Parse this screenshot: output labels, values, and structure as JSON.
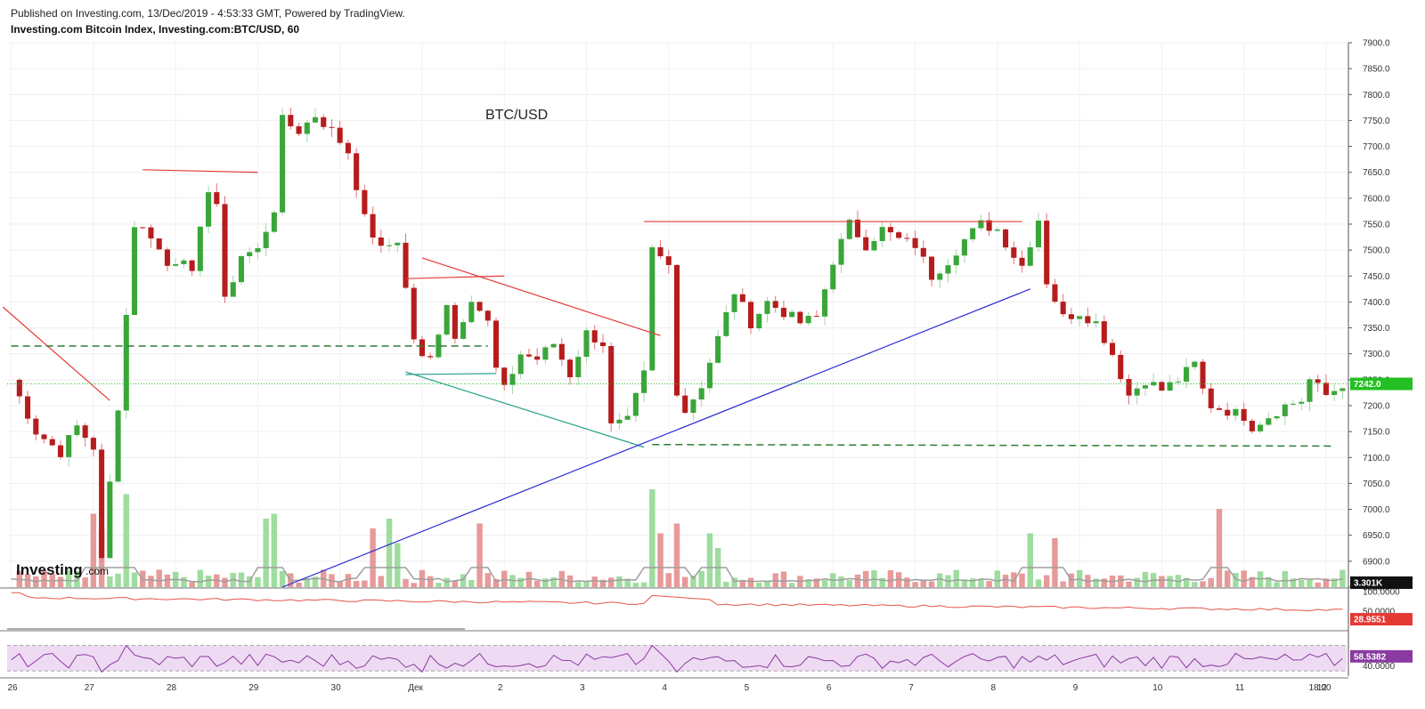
{
  "header": {
    "publish_line": "Published on Investing.com, 13/Dec/2019 - 4:53:33 GMT, Powered by TradingView.",
    "series_title": "Investing.com Bitcoin Index, Investing.com:BTC/USD, 60"
  },
  "logo": {
    "text": "Investing",
    "suffix": ".com"
  },
  "colors": {
    "up": "#3aa63a",
    "down": "#b71c1c",
    "vol_up": "#9fdc9f",
    "vol_down": "#e79a9a",
    "last_price": "#22c022",
    "rsi_band": "#eedbf3",
    "rsi_line": "#8a3aa0",
    "osc_line": "#e5534b",
    "trend_red": "#e53935",
    "trend_blue": "#2a2ad6",
    "trend_teal": "#27a08a",
    "support_green": "#2e7d32"
  },
  "chart_data": {
    "type": "candlestick",
    "annotation": "BTC/USD",
    "x_labels": [
      "26",
      "27",
      "28",
      "29",
      "30",
      "Дек",
      "2",
      "3",
      "4",
      "5",
      "6",
      "7",
      "8",
      "9",
      "10",
      "11",
      "12",
      "18:00"
    ],
    "price_axis": {
      "min": 6850,
      "max": 7900,
      "step": 50
    },
    "price_ticks": [
      "7900.0",
      "7850.0",
      "7800.0",
      "7750.0",
      "7700.0",
      "7650.0",
      "7600.0",
      "7550.0",
      "7500.0",
      "7450.0",
      "7400.0",
      "7350.0",
      "7300.0",
      "7250.0",
      "7200.0",
      "7150.0",
      "7100.0",
      "7050.0",
      "7000.0",
      "6950.0",
      "6900.0",
      "6850.0"
    ],
    "last_price": {
      "value": 7242.0,
      "label": "7242.0"
    },
    "price_path": [
      [
        0,
        7250
      ],
      [
        3,
        7150
      ],
      [
        6,
        7110
      ],
      [
        8,
        7160
      ],
      [
        10,
        7120
      ],
      [
        11,
        6900
      ],
      [
        13,
        7200
      ],
      [
        15,
        7550
      ],
      [
        17,
        7530
      ],
      [
        19,
        7470
      ],
      [
        21,
        7490
      ],
      [
        22,
        7450
      ],
      [
        24,
        7620
      ],
      [
        25,
        7590
      ],
      [
        26,
        7400
      ],
      [
        28,
        7490
      ],
      [
        30,
        7500
      ],
      [
        32,
        7580
      ],
      [
        33,
        7750
      ],
      [
        35,
        7730
      ],
      [
        37,
        7760
      ],
      [
        39,
        7730
      ],
      [
        41,
        7690
      ],
      [
        43,
        7560
      ],
      [
        45,
        7500
      ],
      [
        47,
        7520
      ],
      [
        49,
        7330
      ],
      [
        50,
        7290
      ],
      [
        51,
        7290
      ],
      [
        53,
        7400
      ],
      [
        54,
        7330
      ],
      [
        56,
        7410
      ],
      [
        58,
        7360
      ],
      [
        59,
        7270
      ],
      [
        60,
        7230
      ],
      [
        62,
        7300
      ],
      [
        64,
        7290
      ],
      [
        66,
        7320
      ],
      [
        68,
        7260
      ],
      [
        70,
        7340
      ],
      [
        72,
        7320
      ],
      [
        73,
        7160
      ],
      [
        75,
        7170
      ],
      [
        77,
        7260
      ],
      [
        78,
        7500
      ],
      [
        80,
        7470
      ],
      [
        81,
        7230
      ],
      [
        82,
        7190
      ],
      [
        84,
        7240
      ],
      [
        86,
        7330
      ],
      [
        88,
        7420
      ],
      [
        90,
        7360
      ],
      [
        92,
        7400
      ],
      [
        94,
        7380
      ],
      [
        96,
        7360
      ],
      [
        98,
        7370
      ],
      [
        100,
        7480
      ],
      [
        102,
        7550
      ],
      [
        104,
        7510
      ],
      [
        106,
        7540
      ],
      [
        108,
        7520
      ],
      [
        110,
        7510
      ],
      [
        112,
        7450
      ],
      [
        114,
        7480
      ],
      [
        116,
        7520
      ],
      [
        118,
        7550
      ],
      [
        120,
        7540
      ],
      [
        122,
        7490
      ],
      [
        123,
        7470
      ],
      [
        125,
        7560
      ],
      [
        126,
        7440
      ],
      [
        128,
        7370
      ],
      [
        130,
        7380
      ],
      [
        132,
        7360
      ],
      [
        134,
        7300
      ],
      [
        136,
        7220
      ],
      [
        138,
        7250
      ],
      [
        140,
        7230
      ],
      [
        142,
        7250
      ],
      [
        144,
        7280
      ],
      [
        145,
        7230
      ],
      [
        146,
        7200
      ],
      [
        148,
        7190
      ],
      [
        150,
        7180
      ],
      [
        151,
        7160
      ],
      [
        153,
        7180
      ],
      [
        155,
        7200
      ],
      [
        157,
        7210
      ],
      [
        158,
        7250
      ],
      [
        160,
        7220
      ],
      [
        161,
        7230
      ],
      [
        162,
        7242
      ]
    ],
    "volume_spikes": [
      [
        10,
        0.75
      ],
      [
        11,
        0.6
      ],
      [
        14,
        0.95
      ],
      [
        31,
        0.7
      ],
      [
        32,
        0.75
      ],
      [
        44,
        0.6
      ],
      [
        46,
        0.7
      ],
      [
        47,
        0.45
      ],
      [
        57,
        0.65
      ],
      [
        78,
        1.0
      ],
      [
        79,
        0.55
      ],
      [
        81,
        0.65
      ],
      [
        85,
        0.55
      ],
      [
        86,
        0.4
      ],
      [
        124,
        0.55
      ],
      [
        127,
        0.5
      ],
      [
        147,
        0.8
      ]
    ],
    "trend_lines": [
      {
        "color": "trend_red",
        "from": [
          -1,
          7390
        ],
        "to": [
          12,
          7210
        ],
        "dash": false
      },
      {
        "color": "trend_red",
        "from": [
          16,
          7655
        ],
        "to": [
          30,
          7650
        ],
        "dash": false
      },
      {
        "color": "trend_red",
        "from": [
          48,
          7445
        ],
        "to": [
          60,
          7450
        ],
        "dash": false
      },
      {
        "color": "trend_red",
        "from": [
          50,
          7485
        ],
        "to": [
          79,
          7335
        ],
        "dash": false
      },
      {
        "color": "trend_red",
        "from": [
          77,
          7555
        ],
        "to": [
          123,
          7555
        ],
        "dash": false
      },
      {
        "color": "trend_teal",
        "from": [
          48,
          7265
        ],
        "to": [
          77,
          7120
        ],
        "dash": false
      },
      {
        "color": "trend_teal",
        "from": [
          48,
          7260
        ],
        "to": [
          59,
          7262
        ],
        "dash": false
      },
      {
        "color": "trend_blue",
        "from": [
          33,
          6850
        ],
        "to": [
          124,
          7425
        ],
        "dash": false
      },
      {
        "color": "support_green",
        "from": [
          0,
          7315
        ],
        "to": [
          58,
          7315
        ],
        "dash": true
      },
      {
        "color": "support_green",
        "from": [
          78,
          7125
        ],
        "to": [
          161,
          7122
        ],
        "dash": true
      }
    ],
    "volume_badge": "3.301K",
    "osc_ticks": [
      "100.0000",
      "50.0000"
    ],
    "osc_last": "28.9551",
    "rsi_ticks": [
      "40.0000"
    ],
    "rsi_last": "58.5382"
  }
}
